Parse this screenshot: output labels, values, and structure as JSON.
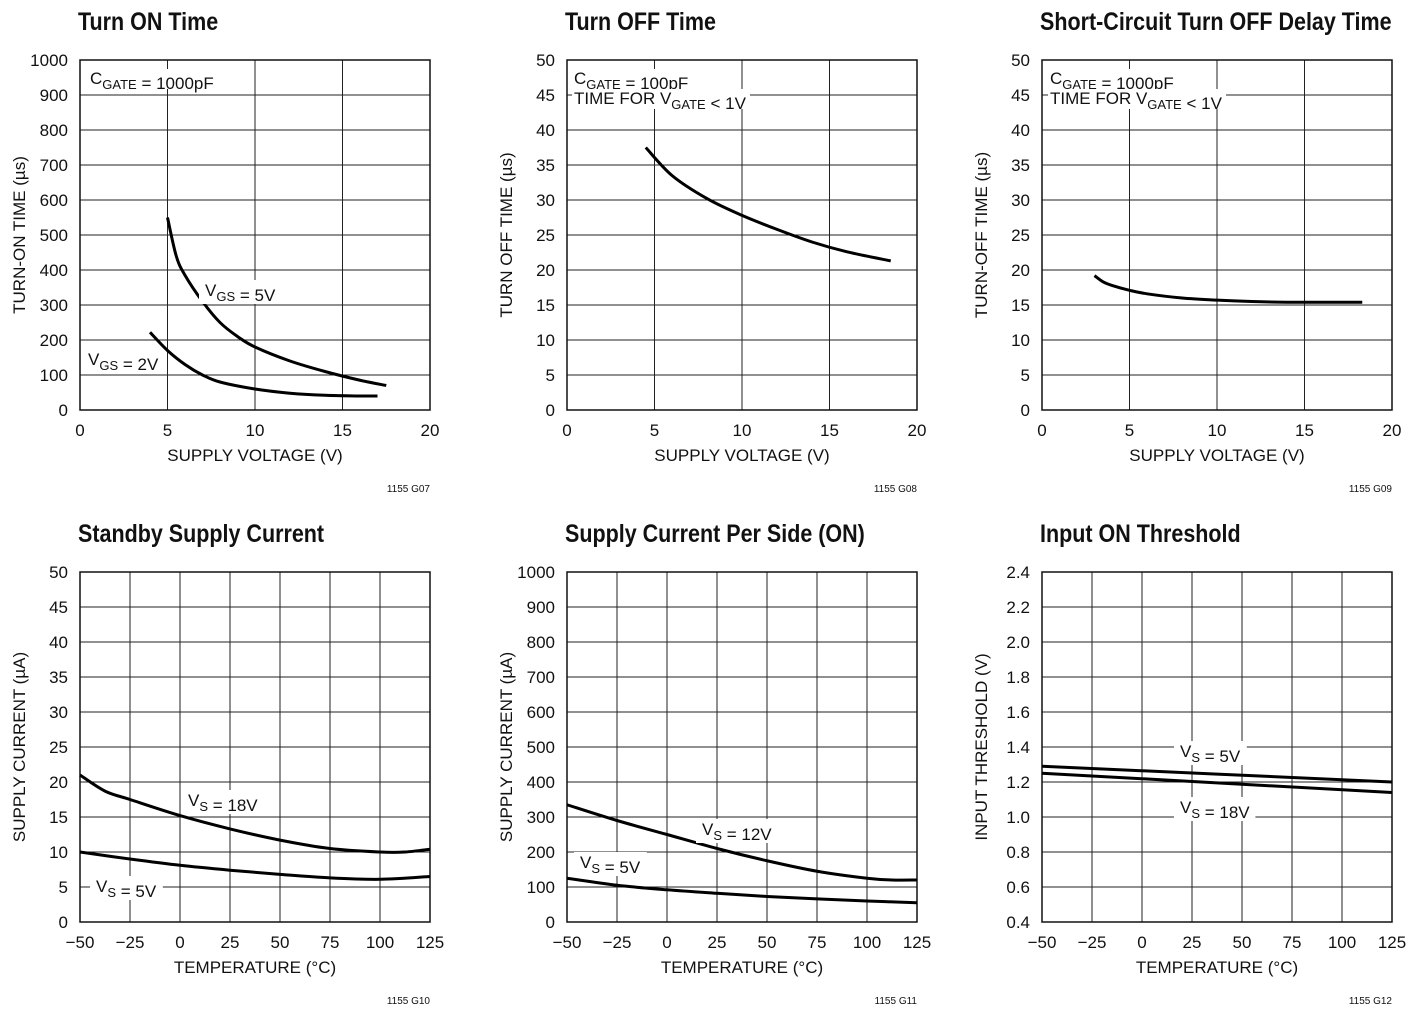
{
  "chart_data": [
    {
      "type": "line",
      "title": "Turn ON Time",
      "xlabel": "SUPPLY VOLTAGE (V)",
      "ylabel": "TURN-ON TIME (µs)",
      "xlim": [
        0,
        20
      ],
      "ylim": [
        0,
        1000
      ],
      "xticks": [
        0,
        5,
        10,
        15,
        20
      ],
      "yticks": [
        0,
        100,
        200,
        300,
        400,
        500,
        600,
        700,
        800,
        900,
        1000
      ],
      "grid": true,
      "code": "1155 G07",
      "condition": [
        "C_GATE = 1000pF"
      ],
      "series": [
        {
          "name": "V_GS = 5V",
          "x": [
            5,
            5.5,
            6,
            7,
            8,
            9,
            10,
            12,
            14,
            16,
            17.5
          ],
          "y": [
            550,
            440,
            385,
            310,
            250,
            210,
            180,
            140,
            110,
            85,
            70
          ]
        },
        {
          "name": "V_GS = 2V",
          "x": [
            4,
            5,
            6,
            7,
            8,
            10,
            12,
            14,
            16,
            17
          ],
          "y": [
            222,
            170,
            130,
            100,
            80,
            60,
            48,
            42,
            40,
            40
          ]
        }
      ]
    },
    {
      "type": "line",
      "title": "Turn OFF Time",
      "xlabel": "SUPPLY VOLTAGE (V)",
      "ylabel": "TURN OFF TIME (µs)",
      "xlim": [
        0,
        20
      ],
      "ylim": [
        0,
        50
      ],
      "xticks": [
        0,
        5,
        10,
        15,
        20
      ],
      "yticks": [
        0,
        5,
        10,
        15,
        20,
        25,
        30,
        35,
        40,
        45,
        50
      ],
      "grid": true,
      "code": "1155 G08",
      "condition": [
        "C_GATE = 100pF",
        "TIME FOR V_GATE < 1V"
      ],
      "series": [
        {
          "name": "",
          "x": [
            4.5,
            6,
            8,
            10,
            12,
            14,
            16,
            18.5
          ],
          "y": [
            37.5,
            33.5,
            30.2,
            27.8,
            25.8,
            24,
            22.6,
            21.3
          ]
        }
      ]
    },
    {
      "type": "line",
      "title": "Short-Circuit Turn OFF Delay Time",
      "xlabel": "SUPPLY VOLTAGE (V)",
      "ylabel": "TURN-OFF TIME (µs)",
      "xlim": [
        0,
        20
      ],
      "ylim": [
        0,
        50
      ],
      "xticks": [
        0,
        5,
        10,
        15,
        20
      ],
      "yticks": [
        0,
        5,
        10,
        15,
        20,
        25,
        30,
        35,
        40,
        45,
        50
      ],
      "grid": true,
      "code": "1155 G09",
      "condition": [
        "C_GATE = 1000pF",
        "TIME FOR V_GATE < 1V"
      ],
      "series": [
        {
          "name": "",
          "x": [
            3,
            3.5,
            4,
            5,
            6,
            8,
            10,
            12,
            14,
            16,
            18.3
          ],
          "y": [
            19.2,
            18.3,
            17.8,
            17.1,
            16.6,
            16,
            15.7,
            15.5,
            15.4,
            15.4,
            15.4
          ]
        }
      ]
    },
    {
      "type": "line",
      "title": "Standby Supply Current",
      "xlabel": "TEMPERATURE (°C)",
      "ylabel": "SUPPLY CURRENT (µA)",
      "xlim": [
        -50,
        125
      ],
      "ylim": [
        0,
        50
      ],
      "xticks": [
        -50,
        -25,
        0,
        25,
        50,
        75,
        100,
        125
      ],
      "yticks": [
        0,
        5,
        10,
        15,
        20,
        25,
        30,
        35,
        40,
        45,
        50
      ],
      "grid": true,
      "code": "1155 G10",
      "condition": [],
      "series": [
        {
          "name": "V_S = 18V",
          "x": [
            -50,
            -37.5,
            -25,
            0,
            25,
            50,
            75,
            100,
            112.5,
            125
          ],
          "y": [
            21,
            18.7,
            17.5,
            15.2,
            13.3,
            11.7,
            10.5,
            10,
            10,
            10.4
          ]
        },
        {
          "name": "V_S = 5V",
          "x": [
            -50,
            -25,
            0,
            25,
            50,
            75,
            100,
            125
          ],
          "y": [
            10,
            9,
            8.1,
            7.4,
            6.8,
            6.3,
            6.1,
            6.5
          ]
        }
      ]
    },
    {
      "type": "line",
      "title": "Supply Current Per Side (ON)",
      "xlabel": "TEMPERATURE (°C)",
      "ylabel": "SUPPLY CURRENT (µA)",
      "xlim": [
        -50,
        125
      ],
      "ylim": [
        0,
        1000
      ],
      "xticks": [
        -50,
        -25,
        0,
        25,
        50,
        75,
        100,
        125
      ],
      "yticks": [
        0,
        100,
        200,
        300,
        400,
        500,
        600,
        700,
        800,
        900,
        1000
      ],
      "grid": true,
      "code": "1155 G11",
      "condition": [],
      "series": [
        {
          "name": "V_S = 12V",
          "x": [
            -50,
            -25,
            0,
            25,
            50,
            75,
            100,
            112.5,
            125
          ],
          "y": [
            335,
            290,
            250,
            210,
            175,
            145,
            125,
            120,
            120
          ]
        },
        {
          "name": "V_S = 5V",
          "x": [
            -50,
            -25,
            0,
            25,
            50,
            75,
            100,
            125
          ],
          "y": [
            125,
            105,
            92,
            82,
            73,
            66,
            60,
            55
          ]
        }
      ]
    },
    {
      "type": "line",
      "title": "Input ON Threshold",
      "xlabel": "TEMPERATURE (°C)",
      "ylabel": "INPUT THRESHOLD (V)",
      "xlim": [
        -50,
        125
      ],
      "ylim": [
        0.4,
        2.4
      ],
      "xticks": [
        -50,
        -25,
        0,
        25,
        50,
        75,
        100,
        125
      ],
      "ytick_labels": [
        "0.4",
        "0.6",
        "0.8",
        "1.0",
        "1.2",
        "1.4",
        "1.6",
        "1.8",
        "2.0",
        "2.2",
        "2.4"
      ],
      "yticks": [
        0.4,
        0.6,
        0.8,
        1.0,
        1.2,
        1.4,
        1.6,
        1.8,
        2.0,
        2.2,
        2.4
      ],
      "grid": true,
      "code": "1155 G12",
      "condition": [],
      "series": [
        {
          "name": "V_S = 5V",
          "x": [
            -50,
            125
          ],
          "y": [
            1.29,
            1.2
          ]
        },
        {
          "name": "V_S = 18V",
          "x": [
            -50,
            125
          ],
          "y": [
            1.25,
            1.14
          ]
        }
      ]
    }
  ]
}
